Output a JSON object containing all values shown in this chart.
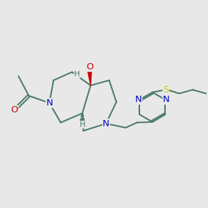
{
  "background_color": "#e8e8e8",
  "bond_color": "#4a7a6a",
  "N_color": "#0000cc",
  "O_color": "#cc0000",
  "S_color": "#cccc00",
  "bond_width": 1.5,
  "font_size": 9.5,
  "xlim": [
    0,
    10
  ],
  "ylim": [
    0,
    10
  ]
}
